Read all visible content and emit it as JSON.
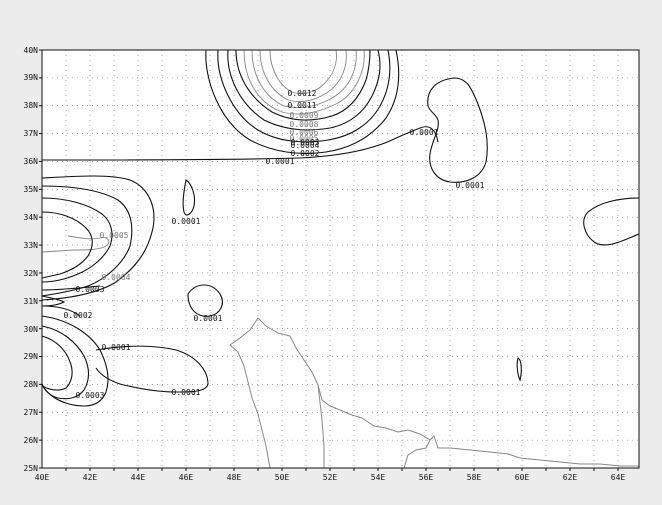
{
  "map": {
    "x_ticks": [
      "40E",
      "42E",
      "44E",
      "46E",
      "48E",
      "50E",
      "52E",
      "54E",
      "56E",
      "58E",
      "60E",
      "62E",
      "64E"
    ],
    "y_ticks": [
      "25N",
      "26N",
      "27N",
      "28N",
      "29N",
      "30N",
      "31N",
      "32N",
      "33N",
      "34N",
      "35N",
      "36N",
      "37N",
      "38N",
      "39N",
      "40N"
    ],
    "contour_labels": [
      "0.0012",
      "0.0011",
      "0.0009",
      "0.0008",
      "0.0006",
      "0.0005",
      "0.0004",
      "0.0003",
      "0.0002",
      "0.0001",
      "0.0001",
      "0.0001",
      "0.0001",
      "0.0001",
      "0.0005",
      "0.0004",
      "0.0003",
      "0.0002",
      "0.0001",
      "0.0001",
      "0.0003"
    ],
    "colors": {
      "background": "#ececec",
      "plot_background": "#ffffff",
      "contour_dark": "#111111",
      "contour_light": "#888888",
      "coastline": "#888888",
      "grid": "#777777"
    }
  }
}
